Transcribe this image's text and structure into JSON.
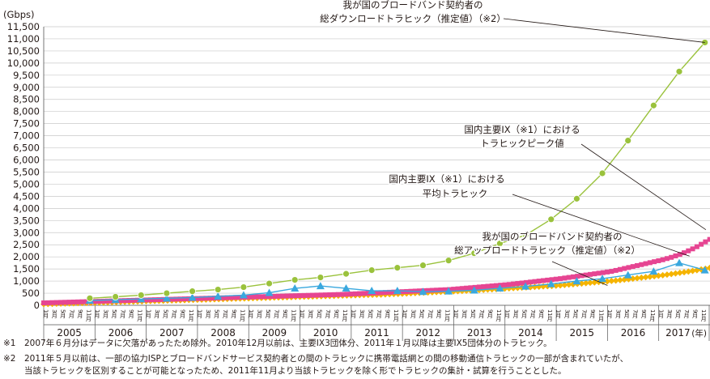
{
  "chart_data": {
    "type": "line",
    "y_unit_label": "(Gbps)",
    "ylim": [
      0,
      11500
    ],
    "y_ticks": [
      "0",
      "500",
      "1,000",
      "1,500",
      "2,000",
      "2,500",
      "3,000",
      "3,500",
      "4,000",
      "4,500",
      "5,000",
      "5,500",
      "6,000",
      "6,500",
      "7,000",
      "7,500",
      "8,000",
      "8,500",
      "9,000",
      "9,500",
      "10,000",
      "10,500",
      "11,000",
      "11,500"
    ],
    "month_labels": [
      "1月",
      "3月",
      "5月",
      "7月",
      "9月",
      "11月"
    ],
    "years": [
      "2005",
      "2006",
      "2007",
      "2008",
      "2009",
      "2010",
      "2011",
      "2012",
      "2013",
      "2014",
      "2015",
      "2016",
      "2017"
    ],
    "year_unit": "(年)",
    "grid": true,
    "series": [
      {
        "name": "我が国のブロードバンド契約者の総ダウンロードトラヒック（推定値）（※2）",
        "color": "#9ac23c",
        "marker": "circle",
        "x": [
          2005.9,
          2006.4,
          2006.9,
          2007.4,
          2007.9,
          2008.4,
          2008.9,
          2009.4,
          2009.9,
          2010.4,
          2010.9,
          2011.4,
          2011.9,
          2012.4,
          2012.9,
          2013.4,
          2013.9,
          2014.4,
          2014.9,
          2015.4,
          2015.9,
          2016.4,
          2016.9,
          2017.4,
          2017.9
        ],
        "values": [
          290,
          350,
          420,
          500,
          580,
          650,
          750,
          900,
          1050,
          1150,
          1300,
          1450,
          1550,
          1650,
          1850,
          2150,
          2550,
          2900,
          3550,
          4400,
          5450,
          6800,
          8250,
          9650,
          10850
        ]
      },
      {
        "name": "国内主要IX（※1）におけるトラヒックピーク値",
        "color": "#e64592",
        "marker": "square",
        "x_start": 2005.0,
        "x_step": 0.0833,
        "values": [
          100,
          105,
          110,
          115,
          120,
          125,
          130,
          135,
          140,
          145,
          150,
          155,
          160,
          165,
          170,
          175,
          180,
          185,
          190,
          195,
          200,
          205,
          210,
          215,
          220,
          225,
          230,
          235,
          240,
          245,
          250,
          255,
          260,
          265,
          270,
          275,
          280,
          285,
          290,
          295,
          300,
          305,
          310,
          315,
          320,
          325,
          330,
          335,
          340,
          345,
          350,
          355,
          360,
          365,
          370,
          375,
          380,
          385,
          390,
          395,
          400,
          405,
          410,
          415,
          420,
          425,
          430,
          435,
          440,
          445,
          450,
          458,
          466,
          474,
          482,
          490,
          498,
          506,
          514,
          522,
          530,
          538,
          546,
          554,
          562,
          570,
          578,
          586,
          594,
          602,
          610,
          618,
          626,
          634,
          642,
          650,
          665,
          680,
          695,
          710,
          725,
          740,
          755,
          770,
          785,
          800,
          815,
          830,
          845,
          860,
          880,
          900,
          920,
          940,
          960,
          980,
          1000,
          1020,
          1040,
          1060,
          1080,
          1100,
          1125,
          1150,
          1175,
          1200,
          1225,
          1250,
          1275,
          1300,
          1325,
          1350,
          1375,
          1400,
          1440,
          1480,
          1520,
          1560,
          1600,
          1640,
          1680,
          1720,
          1760,
          1800,
          1840,
          1880,
          1930,
          1980,
          2040,
          2100,
          2170,
          2250,
          2330,
          2420,
          2520,
          2620,
          2720,
          2830,
          2930,
          3050,
          3120
        ]
      },
      {
        "name": "国内主要IX（※1）における平均トラヒック",
        "color": "#3aa8de",
        "marker": "triangle",
        "x": [
          2005.9,
          2006.4,
          2006.9,
          2007.4,
          2007.9,
          2008.4,
          2008.9,
          2009.4,
          2009.9,
          2010.4,
          2010.9,
          2011.4,
          2011.9,
          2012.4,
          2012.9,
          2013.4,
          2013.9,
          2014.4,
          2014.9,
          2015.4,
          2015.9,
          2016.4,
          2016.9,
          2017.4,
          2017.9
        ],
        "values": [
          200,
          230,
          260,
          290,
          320,
          370,
          420,
          520,
          700,
          800,
          700,
          600,
          600,
          560,
          580,
          620,
          700,
          780,
          880,
          1000,
          1100,
          1250,
          1400,
          1750,
          1450
        ]
      },
      {
        "name": "我が国のブロードバンド契約者の総アップロードトラヒック（推定値）（※2）",
        "color": "#f5b400",
        "marker": "diamond",
        "x_start": 2005.0,
        "x_step": 0.0833,
        "values": [
          50,
          55,
          60,
          65,
          70,
          75,
          80,
          85,
          90,
          95,
          100,
          105,
          110,
          115,
          120,
          125,
          130,
          135,
          140,
          145,
          150,
          155,
          160,
          165,
          170,
          175,
          180,
          185,
          190,
          195,
          200,
          205,
          210,
          215,
          220,
          225,
          230,
          235,
          240,
          245,
          250,
          255,
          260,
          265,
          270,
          275,
          280,
          285,
          290,
          295,
          300,
          305,
          310,
          315,
          320,
          325,
          330,
          335,
          340,
          345,
          350,
          355,
          360,
          365,
          370,
          375,
          380,
          385,
          390,
          395,
          400,
          405,
          410,
          415,
          420,
          425,
          430,
          435,
          440,
          445,
          450,
          458,
          466,
          474,
          482,
          490,
          498,
          506,
          514,
          522,
          530,
          538,
          546,
          554,
          562,
          570,
          578,
          586,
          594,
          602,
          610,
          620,
          630,
          640,
          650,
          660,
          670,
          680,
          690,
          700,
          710,
          720,
          730,
          740,
          750,
          760,
          770,
          780,
          790,
          800,
          810,
          825,
          840,
          855,
          870,
          885,
          900,
          915,
          930,
          945,
          960,
          975,
          990,
          1005,
          1020,
          1040,
          1060,
          1080,
          1100,
          1120,
          1140,
          1160,
          1180,
          1200,
          1220,
          1240,
          1265,
          1290,
          1315,
          1340,
          1365,
          1390,
          1420,
          1450,
          1480,
          1510,
          1540,
          1570,
          1600,
          1630,
          1660
        ]
      }
    ],
    "annotations": [
      {
        "lines": [
          "我が国のブロードバンド契約者の",
          "総ダウンロードトラヒック（推定値）（※2）"
        ]
      },
      {
        "lines": [
          "国内主要IX（※1）における",
          "トラヒックピーク値"
        ]
      },
      {
        "lines": [
          "国内主要IX（※1）における",
          "平均トラヒック"
        ]
      },
      {
        "lines": [
          "我が国のブロードバンド契約者の",
          "総アップロードトラヒック（推定値）（※2）"
        ]
      }
    ]
  },
  "notes": [
    {
      "mark": "※1",
      "lines": [
        "2007年６月分はデータに欠落があったため除外。2010年12月以前は、主要IX3団体分、2011年１月以降は主要IX5団体分のトラヒック。"
      ]
    },
    {
      "mark": "※2",
      "lines": [
        "2011年５月以前は、一部の協力ISPとブロードバンドサービス契約者との間のトラヒックに携帯電話網との間の移動通信トラヒックの一部が含まれていたが、",
        "当該トラヒックを区別することが可能となったため、2011年11月より当該トラヒックを除く形でトラヒックの集計・試算を行うこととした。"
      ]
    }
  ]
}
